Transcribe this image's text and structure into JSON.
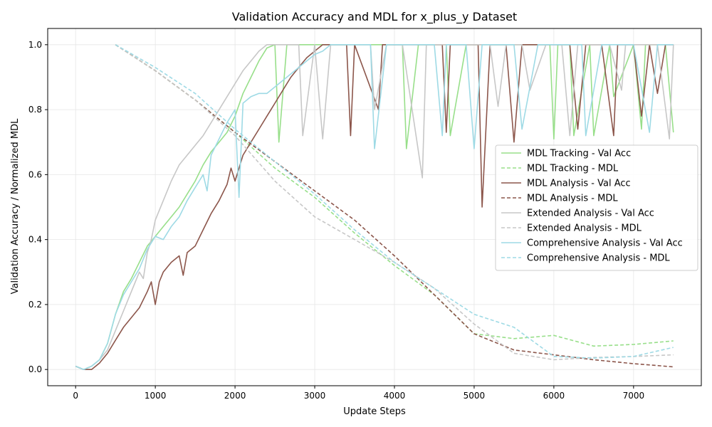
{
  "chart_data": {
    "type": "line",
    "title": "Validation Accuracy and MDL for x_plus_y Dataset",
    "xlabel": "Update Steps",
    "ylabel": "Validation Accuracy / Normalized MDL",
    "xlim": [
      -350,
      7850
    ],
    "ylim": [
      -0.05,
      1.05
    ],
    "xticks": [
      0,
      1000,
      2000,
      3000,
      4000,
      5000,
      6000,
      7000
    ],
    "yticks": [
      0.0,
      0.2,
      0.4,
      0.6,
      0.8,
      1.0
    ],
    "grid": true,
    "legend_position": "center-right",
    "legend": [
      {
        "label": "MDL Tracking - Val Acc",
        "color": "#98df8a",
        "style": "solid"
      },
      {
        "label": "MDL Tracking - MDL",
        "color": "#98df8a",
        "style": "dashed"
      },
      {
        "label": "MDL Analysis - Val Acc",
        "color": "#8c564b",
        "style": "solid"
      },
      {
        "label": "MDL Analysis - MDL",
        "color": "#8c564b",
        "style": "dashed"
      },
      {
        "label": "Extended Analysis - Val Acc",
        "color": "#c7c7c7",
        "style": "solid"
      },
      {
        "label": "Extended Analysis - MDL",
        "color": "#c7c7c7",
        "style": "dashed"
      },
      {
        "label": "Comprehensive Analysis - Val Acc",
        "color": "#9edae5",
        "style": "solid"
      },
      {
        "label": "Comprehensive Analysis - MDL",
        "color": "#9edae5",
        "style": "dashed"
      }
    ],
    "series": [
      {
        "name": "MDL Tracking - Val Acc",
        "color": "#98df8a",
        "style": "solid",
        "x": [
          0,
          100,
          200,
          300,
          400,
          500,
          600,
          700,
          800,
          900,
          1000,
          1100,
          1200,
          1300,
          1400,
          1500,
          1600,
          1700,
          1800,
          1900,
          2000,
          2100,
          2200,
          2300,
          2400,
          2500,
          2550,
          2650,
          2750,
          2900,
          3000,
          3300,
          3500,
          3700,
          3900,
          4100,
          4150,
          4300,
          4500,
          4650,
          4700,
          4900,
          5000,
          5200,
          5400,
          5600,
          5800,
          5950,
          6000,
          6050,
          6200,
          6250,
          6450,
          6500,
          6700,
          6750,
          7000,
          7100,
          7150,
          7300,
          7400,
          7500
        ],
        "y": [
          0.01,
          0.0,
          0.01,
          0.03,
          0.08,
          0.17,
          0.24,
          0.28,
          0.33,
          0.38,
          0.41,
          0.44,
          0.47,
          0.5,
          0.54,
          0.58,
          0.63,
          0.67,
          0.7,
          0.73,
          0.78,
          0.85,
          0.9,
          0.95,
          0.99,
          1.0,
          0.7,
          1.0,
          1.0,
          1.0,
          1.0,
          1.0,
          1.0,
          1.0,
          1.0,
          1.0,
          0.68,
          1.0,
          1.0,
          1.0,
          0.72,
          1.0,
          1.0,
          1.0,
          1.0,
          1.0,
          1.0,
          1.0,
          0.71,
          1.0,
          1.0,
          0.72,
          1.0,
          0.72,
          1.0,
          0.84,
          1.0,
          0.74,
          1.0,
          1.0,
          1.0,
          0.73
        ]
      },
      {
        "name": "MDL Tracking - MDL",
        "color": "#98df8a",
        "style": "dashed",
        "x": [
          500,
          1000,
          1500,
          2000,
          2500,
          3000,
          3500,
          4000,
          4500,
          5000,
          5500,
          6000,
          6500,
          7000,
          7500
        ],
        "y": [
          1.0,
          0.92,
          0.83,
          0.73,
          0.62,
          0.53,
          0.42,
          0.32,
          0.23,
          0.11,
          0.095,
          0.105,
          0.072,
          0.077,
          0.088
        ]
      },
      {
        "name": "MDL Analysis - Val Acc",
        "color": "#8c564b",
        "style": "solid",
        "x": [
          0,
          100,
          200,
          300,
          400,
          500,
          600,
          700,
          800,
          900,
          950,
          1000,
          1050,
          1100,
          1200,
          1300,
          1350,
          1400,
          1500,
          1600,
          1700,
          1800,
          1900,
          1950,
          2000,
          2100,
          2200,
          2300,
          2400,
          2500,
          2600,
          2700,
          2800,
          2900,
          3000,
          3100,
          3200,
          3300,
          3400,
          3450,
          3500,
          3800,
          3850,
          3900,
          4000,
          4200,
          4400,
          4600,
          4650,
          4700,
          4900,
          5000,
          5050,
          5100,
          5200,
          5400,
          5500,
          5600,
          5800,
          6000,
          6200,
          6300,
          6400,
          6600,
          6750,
          6800,
          7000,
          7100,
          7200,
          7300,
          7400,
          7500
        ],
        "y": [
          0.01,
          0.0,
          0.0,
          0.02,
          0.05,
          0.09,
          0.13,
          0.16,
          0.19,
          0.24,
          0.27,
          0.2,
          0.27,
          0.3,
          0.33,
          0.35,
          0.29,
          0.36,
          0.38,
          0.43,
          0.48,
          0.52,
          0.57,
          0.62,
          0.58,
          0.66,
          0.7,
          0.74,
          0.78,
          0.82,
          0.86,
          0.9,
          0.93,
          0.96,
          0.98,
          1.0,
          1.0,
          1.0,
          1.0,
          0.72,
          1.0,
          0.8,
          1.0,
          1.0,
          1.0,
          1.0,
          1.0,
          1.0,
          0.73,
          1.0,
          1.0,
          1.0,
          1.0,
          0.5,
          1.0,
          1.0,
          0.7,
          1.0,
          1.0,
          1.0,
          1.0,
          0.74,
          1.0,
          1.0,
          0.72,
          1.0,
          1.0,
          0.78,
          1.0,
          0.85,
          1.0,
          1.0
        ]
      },
      {
        "name": "MDL Analysis - MDL",
        "color": "#8c564b",
        "style": "dashed",
        "x": [
          500,
          1000,
          1500,
          2000,
          2500,
          3000,
          3500,
          4000,
          4500,
          5000,
          5500,
          6000,
          6500,
          7000,
          7500
        ],
        "y": [
          1.0,
          0.92,
          0.83,
          0.73,
          0.64,
          0.55,
          0.46,
          0.35,
          0.23,
          0.11,
          0.06,
          0.045,
          0.03,
          0.018,
          0.008
        ]
      },
      {
        "name": "Extended Analysis - Val Acc",
        "color": "#c7c7c7",
        "style": "solid",
        "x": [
          0,
          100,
          200,
          300,
          400,
          500,
          600,
          700,
          800,
          850,
          900,
          950,
          1000,
          1100,
          1200,
          1300,
          1400,
          1500,
          1600,
          1700,
          1800,
          1900,
          2000,
          2100,
          2200,
          2300,
          2400,
          2600,
          2800,
          2850,
          3000,
          3100,
          3200,
          3300,
          3500,
          3700,
          3750,
          3900,
          4100,
          4350,
          4400,
          4600,
          4800,
          5000,
          5200,
          5300,
          5400,
          5600,
          5700,
          5900,
          6100,
          6200,
          6300,
          6500,
          6700,
          6850,
          6900,
          7100,
          7300,
          7450,
          7500
        ],
        "y": [
          0.01,
          0.0,
          0.01,
          0.03,
          0.06,
          0.12,
          0.18,
          0.24,
          0.3,
          0.28,
          0.36,
          0.4,
          0.46,
          0.52,
          0.58,
          0.63,
          0.66,
          0.69,
          0.72,
          0.76,
          0.8,
          0.84,
          0.88,
          0.92,
          0.95,
          0.98,
          1.0,
          1.0,
          1.0,
          0.72,
          1.0,
          0.71,
          1.0,
          1.0,
          1.0,
          1.0,
          0.8,
          1.0,
          1.0,
          0.59,
          1.0,
          1.0,
          1.0,
          1.0,
          1.0,
          0.81,
          1.0,
          1.0,
          0.86,
          1.0,
          1.0,
          0.72,
          1.0,
          1.0,
          1.0,
          0.86,
          1.0,
          1.0,
          1.0,
          0.71,
          1.0
        ]
      },
      {
        "name": "Extended Analysis - MDL",
        "color": "#c7c7c7",
        "style": "dashed",
        "x": [
          500,
          1000,
          1500,
          2000,
          2500,
          3000,
          3500,
          4000,
          4500,
          5000,
          5500,
          6000,
          6500,
          7000,
          7500
        ],
        "y": [
          1.0,
          0.92,
          0.83,
          0.72,
          0.58,
          0.47,
          0.4,
          0.33,
          0.25,
          0.14,
          0.05,
          0.03,
          0.037,
          0.04,
          0.045
        ]
      },
      {
        "name": "Comprehensive Analysis - Val Acc",
        "color": "#9edae5",
        "style": "solid",
        "x": [
          0,
          100,
          200,
          300,
          400,
          500,
          600,
          700,
          800,
          900,
          1000,
          1100,
          1200,
          1300,
          1400,
          1500,
          1600,
          1650,
          1700,
          1800,
          1900,
          2000,
          2050,
          2100,
          2200,
          2300,
          2400,
          2500,
          2600,
          2700,
          2800,
          2900,
          3000,
          3100,
          3200,
          3300,
          3500,
          3600,
          3700,
          3750,
          3900,
          4100,
          4300,
          4500,
          4600,
          4650,
          4800,
          4900,
          5000,
          5100,
          5200,
          5300,
          5500,
          5600,
          5800,
          6000,
          6200,
          6350,
          6400,
          6600,
          6800,
          7000,
          7200,
          7300,
          7500
        ],
        "y": [
          0.01,
          0.0,
          0.01,
          0.03,
          0.08,
          0.17,
          0.23,
          0.27,
          0.31,
          0.37,
          0.41,
          0.4,
          0.44,
          0.47,
          0.52,
          0.56,
          0.6,
          0.55,
          0.66,
          0.71,
          0.76,
          0.8,
          0.53,
          0.82,
          0.84,
          0.85,
          0.85,
          0.87,
          0.89,
          0.91,
          0.93,
          0.95,
          0.97,
          0.98,
          1.0,
          1.0,
          1.0,
          1.0,
          1.0,
          0.68,
          1.0,
          1.0,
          1.0,
          1.0,
          0.72,
          1.0,
          1.0,
          1.0,
          0.68,
          1.0,
          1.0,
          1.0,
          1.0,
          0.74,
          1.0,
          1.0,
          1.0,
          1.0,
          0.72,
          1.0,
          1.0,
          1.0,
          0.73,
          1.0,
          1.0
        ]
      },
      {
        "name": "Comprehensive Analysis - MDL",
        "color": "#9edae5",
        "style": "dashed",
        "x": [
          500,
          1000,
          1500,
          2000,
          2500,
          3000,
          3500,
          4000,
          4500,
          5000,
          5500,
          6000,
          6500,
          7000,
          7500
        ],
        "y": [
          1.0,
          0.93,
          0.85,
          0.74,
          0.64,
          0.54,
          0.43,
          0.33,
          0.25,
          0.17,
          0.13,
          0.04,
          0.035,
          0.04,
          0.068
        ]
      }
    ]
  }
}
